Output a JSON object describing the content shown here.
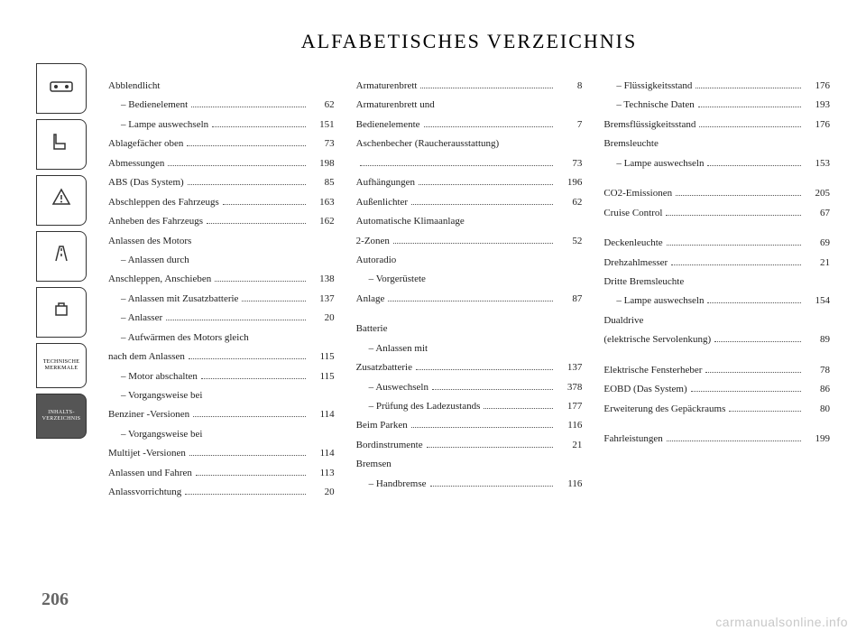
{
  "page": {
    "title": "ALFABETISCHES VERZEICHNIS",
    "number": "206",
    "watermark": "carmanualsonline.info"
  },
  "sidebar": {
    "tabs": [
      {
        "type": "icon",
        "name": "dashboard-icon"
      },
      {
        "type": "icon",
        "name": "seat-icon"
      },
      {
        "type": "icon",
        "name": "warning-icon"
      },
      {
        "type": "icon",
        "name": "road-icon"
      },
      {
        "type": "icon",
        "name": "service-icon"
      },
      {
        "type": "text",
        "label": "TECHNISCHE\nMERKMALE",
        "filled": false
      },
      {
        "type": "text",
        "label": "INHALTS-\nVERZEICHNIS",
        "filled": true
      }
    ]
  },
  "columns": [
    [
      {
        "label": "Abblendlicht",
        "page": "",
        "heading": true
      },
      {
        "label": "– Bedienelement",
        "page": "62",
        "indent": true
      },
      {
        "label": "– Lampe auswechseln",
        "page": "151",
        "indent": true
      },
      {
        "label": "Ablagefächer oben",
        "page": "73"
      },
      {
        "label": "Abmessungen",
        "page": "198"
      },
      {
        "label": "ABS (Das System)",
        "page": "85"
      },
      {
        "label": "Abschleppen des Fahrzeugs",
        "page": "163"
      },
      {
        "label": "Anheben des Fahrzeugs",
        "page": "162"
      },
      {
        "label": "Anlassen des Motors",
        "page": "",
        "heading": true
      },
      {
        "label": "– Anlassen durch Anschleppen, Anschieben",
        "page": "138",
        "indent": true,
        "wrap": true
      },
      {
        "label": "– Anlassen mit Zusatzbatterie",
        "page": "137",
        "indent": true
      },
      {
        "label": "– Anlasser",
        "page": "20",
        "indent": true
      },
      {
        "label": "– Aufwärmen des Motors gleich nach dem Anlassen",
        "page": "115",
        "indent": true,
        "wrap": true
      },
      {
        "label": "– Motor abschalten",
        "page": "115",
        "indent": true
      },
      {
        "label": "– Vorgangsweise bei Benziner -Versionen",
        "page": "114",
        "indent": true,
        "wrap": true
      },
      {
        "label": "– Vorgangsweise bei Multijet -Versionen",
        "page": "114",
        "indent": true,
        "wrap": true
      },
      {
        "label": "Anlassen und Fahren",
        "page": "113"
      },
      {
        "label": "Anlassvorrichtung",
        "page": "20"
      }
    ],
    [
      {
        "label": "Armaturenbrett",
        "page": "8"
      },
      {
        "label": "Armaturenbrett und Bedienelemente",
        "page": "7",
        "wrap": true
      },
      {
        "label": "Aschenbecher (Raucherausstattung)",
        "page": "73",
        "wrap": true
      },
      {
        "label": "Aufhängungen",
        "page": "196"
      },
      {
        "label": "Außenlichter",
        "page": "62"
      },
      {
        "label": "Automatische Klimaanlage 2-Zonen",
        "page": "52",
        "wrap": true
      },
      {
        "label": "Autoradio",
        "page": "",
        "heading": true
      },
      {
        "label": "– Vorgerüstete",
        "page": "",
        "indent": true,
        "heading": true
      },
      {
        "label": "Anlage",
        "page": "87"
      },
      {
        "spacer": true
      },
      {
        "label": "Batterie",
        "page": "",
        "heading": true
      },
      {
        "label": "– Anlassen mit",
        "page": "",
        "indent": true,
        "heading": true
      },
      {
        "label": "Zusatzbatterie",
        "page": "137"
      },
      {
        "label": "– Auswechseln",
        "page": "378",
        "indent": true
      },
      {
        "label": "– Prüfung des Ladezustands",
        "page": "177",
        "indent": true
      },
      {
        "label": "Beim Parken",
        "page": "116"
      },
      {
        "label": "Bordinstrumente",
        "page": "21"
      },
      {
        "label": "Bremsen",
        "page": "",
        "heading": true
      },
      {
        "label": "– Handbremse",
        "page": "116",
        "indent": true
      }
    ],
    [
      {
        "label": "– Flüssigkeitsstand",
        "page": "176",
        "indent": true
      },
      {
        "label": "– Technische Daten",
        "page": "193",
        "indent": true
      },
      {
        "label": "Bremsflüssigkeitsstand",
        "page": "176"
      },
      {
        "label": "Bremsleuchte",
        "page": "",
        "heading": true
      },
      {
        "label": "– Lampe auswechseln",
        "page": "153",
        "indent": true
      },
      {
        "spacer": true
      },
      {
        "label": "CO2-Emissionen",
        "page": "205"
      },
      {
        "label": "Cruise Control",
        "page": "67"
      },
      {
        "spacer": true
      },
      {
        "label": "Deckenleuchte",
        "page": "69"
      },
      {
        "label": "Drehzahlmesser",
        "page": "21"
      },
      {
        "label": "Dritte Bremsleuchte",
        "page": "",
        "heading": true
      },
      {
        "label": "– Lampe auswechseln",
        "page": "154",
        "indent": true
      },
      {
        "label": "Dualdrive",
        "page": "",
        "heading": true
      },
      {
        "label": "(elektrische Servolenkung)",
        "page": "89"
      },
      {
        "spacer": true
      },
      {
        "label": "Elektrische Fensterheber",
        "page": "78"
      },
      {
        "label": "EOBD (Das System)",
        "page": "86"
      },
      {
        "label": "Erweiterung des Gepäckraums",
        "page": "80"
      },
      {
        "spacer": true
      },
      {
        "label": "Fahrleistungen",
        "page": "199"
      }
    ]
  ]
}
